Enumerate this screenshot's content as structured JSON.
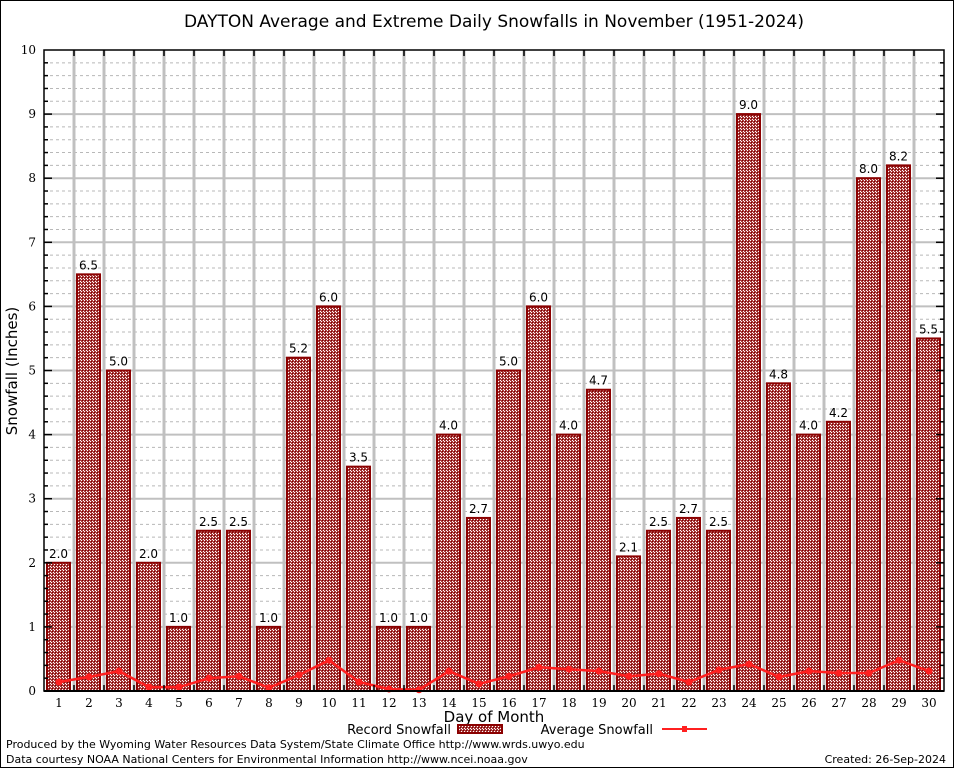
{
  "chart_data": {
    "type": "bar",
    "title": "DAYTON Average and Extreme Daily Snowfalls in November (1951-2024)",
    "xlabel": "Day of Month",
    "ylabel": "Snowfall (Inches)",
    "ylim": [
      0,
      10
    ],
    "yticks": [
      "0",
      "1",
      "2",
      "3",
      "4",
      "5",
      "6",
      "7",
      "8",
      "9",
      "10"
    ],
    "grid": true,
    "categories": [
      "1",
      "2",
      "3",
      "4",
      "5",
      "6",
      "7",
      "8",
      "9",
      "10",
      "11",
      "12",
      "13",
      "14",
      "15",
      "16",
      "17",
      "18",
      "19",
      "20",
      "21",
      "22",
      "23",
      "24",
      "25",
      "26",
      "27",
      "28",
      "29",
      "30"
    ],
    "series": [
      {
        "name": "Record Snowfall",
        "type": "bar",
        "values": [
          2.0,
          6.5,
          5.0,
          2.0,
          1.0,
          2.5,
          2.5,
          1.0,
          5.2,
          6.0,
          3.5,
          1.0,
          1.0,
          4.0,
          2.7,
          5.0,
          6.0,
          4.0,
          4.7,
          2.1,
          2.5,
          2.7,
          2.5,
          9.0,
          4.8,
          4.0,
          4.2,
          8.0,
          8.2,
          5.5
        ],
        "labels": [
          "2.0",
          "6.5",
          "5.0",
          "2.0",
          "1.0",
          "2.5",
          "2.5",
          "1.0",
          "5.2",
          "6.0",
          "3.5",
          "1.0",
          "1.0",
          "4.0",
          "2.7",
          "5.0",
          "6.0",
          "4.0",
          "4.7",
          "2.1",
          "2.5",
          "2.7",
          "2.5",
          "9.0",
          "4.8",
          "4.0",
          "4.2",
          "8.0",
          "8.2",
          "5.5"
        ],
        "color": "#8b0000"
      },
      {
        "name": "Average Snowfall",
        "type": "line",
        "values": [
          0.14,
          0.22,
          0.31,
          0.06,
          0.06,
          0.2,
          0.23,
          0.05,
          0.25,
          0.48,
          0.14,
          0.03,
          0.02,
          0.31,
          0.11,
          0.23,
          0.37,
          0.34,
          0.31,
          0.23,
          0.27,
          0.14,
          0.33,
          0.42,
          0.22,
          0.31,
          0.28,
          0.28,
          0.48,
          0.31
        ],
        "color": "#ff2020"
      }
    ],
    "legend": {
      "position": "bottom-center",
      "items": [
        "Record Snowfall",
        "Average Snowfall"
      ]
    }
  },
  "footer": {
    "line1": "Produced by the Wyoming Water Resources Data System/State Climate Office http://www.wrds.uwyo.edu",
    "line2": "Data courtesy NOAA National Centers for Environmental Information http://www.ncei.noaa.gov",
    "created": "Created: 26-Sep-2024"
  }
}
